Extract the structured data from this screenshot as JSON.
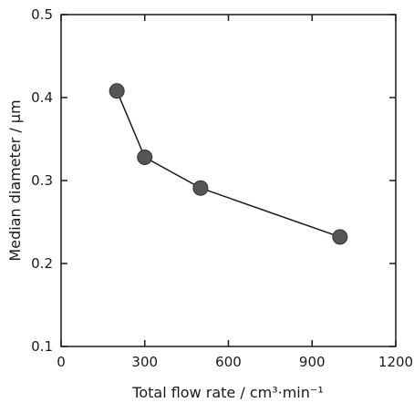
{
  "chart_data": {
    "type": "line",
    "title": "",
    "xlabel": "Total flow rate / cm³·min⁻¹",
    "ylabel": "Median diameter / µm",
    "xlim": [
      0,
      1200
    ],
    "ylim": [
      0.1,
      0.5
    ],
    "xticks": [
      "0",
      "300",
      "600",
      "900",
      "1200"
    ],
    "yticks": [
      "0.1",
      "0.2",
      "0.3",
      "0.4",
      "0.5"
    ],
    "grid": false,
    "legend": "none",
    "series": [
      {
        "x": [
          200,
          300,
          500,
          1000
        ],
        "y": [
          0.408,
          0.328,
          0.291,
          0.232
        ]
      }
    ],
    "colors": {
      "axis": "#1a1a1a",
      "line": "#1a1a1a",
      "marker": "#555555"
    }
  }
}
